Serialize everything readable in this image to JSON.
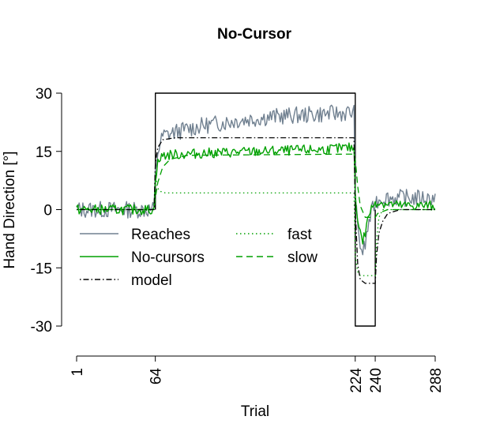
{
  "chart_data": {
    "type": "line",
    "title": "No-Cursor",
    "xlabel": "Trial",
    "ylabel": "Hand Direction [°]",
    "xlim": [
      1,
      288
    ],
    "ylim": [
      -30,
      30
    ],
    "x_ticks": [
      1,
      64,
      224,
      240,
      288
    ],
    "x_tick_labels": [
      "1",
      "64",
      "224",
      "240",
      "288"
    ],
    "y_ticks": [
      30,
      15,
      0,
      -15,
      -30
    ],
    "y_tick_labels": [
      "30",
      "15",
      "0",
      "-15",
      "-30"
    ],
    "grid": false,
    "legend": {
      "placement": "center-left",
      "entries": [
        {
          "label": "Reaches",
          "color": "#708090",
          "style": "solid"
        },
        {
          "label": "No-cursors",
          "color": "#00a000",
          "style": "solid"
        },
        {
          "label": "model",
          "color": "#000000",
          "style": "dotdash"
        },
        {
          "label": "fast",
          "color": "#00a000",
          "style": "dotted"
        },
        {
          "label": "slow",
          "color": "#00a000",
          "style": "dashed"
        }
      ]
    },
    "series": [
      {
        "name": "Reaches",
        "color": "#708090",
        "style": "solid",
        "noise": 2.0,
        "points": [
          [
            1,
            0
          ],
          [
            63,
            0
          ],
          [
            64,
            9
          ],
          [
            66,
            15
          ],
          [
            70,
            19
          ],
          [
            80,
            20
          ],
          [
            100,
            21.5
          ],
          [
            130,
            23
          ],
          [
            160,
            24
          ],
          [
            190,
            24.5
          ],
          [
            223,
            25
          ],
          [
            224,
            3
          ],
          [
            226,
            -5
          ],
          [
            228,
            -9
          ],
          [
            230,
            -11
          ],
          [
            232,
            -9
          ],
          [
            235,
            -3
          ],
          [
            240,
            2
          ],
          [
            245,
            3
          ],
          [
            260,
            3
          ],
          [
            288,
            3
          ]
        ]
      },
      {
        "name": "No-cursors",
        "color": "#00a000",
        "style": "solid",
        "noise": 1.2,
        "points": [
          [
            1,
            0
          ],
          [
            63,
            0
          ],
          [
            64,
            8
          ],
          [
            66,
            12
          ],
          [
            70,
            14
          ],
          [
            100,
            14.5
          ],
          [
            150,
            15
          ],
          [
            200,
            15.5
          ],
          [
            223,
            16
          ],
          [
            224,
            4
          ],
          [
            226,
            -2
          ],
          [
            228,
            -6
          ],
          [
            230,
            -8
          ],
          [
            232,
            -6
          ],
          [
            235,
            -1
          ],
          [
            240,
            2
          ],
          [
            260,
            1
          ],
          [
            288,
            1
          ]
        ]
      },
      {
        "name": "model",
        "color": "#000000",
        "style": "dotdash",
        "noise": 0,
        "points": [
          [
            1,
            0
          ],
          [
            63,
            0
          ],
          [
            64,
            12
          ],
          [
            66,
            16
          ],
          [
            70,
            18
          ],
          [
            80,
            18.5
          ],
          [
            223,
            18.5
          ],
          [
            224,
            0
          ],
          [
            226,
            -14
          ],
          [
            228,
            -18
          ],
          [
            232,
            -19
          ],
          [
            240,
            -19
          ],
          [
            241,
            -12
          ],
          [
            243,
            -6
          ],
          [
            246,
            -3
          ],
          [
            250,
            -1
          ],
          [
            260,
            0
          ],
          [
            288,
            0
          ]
        ]
      },
      {
        "name": "fast",
        "color": "#00a000",
        "style": "dotted",
        "noise": 0,
        "points": [
          [
            1,
            0
          ],
          [
            63,
            0
          ],
          [
            64,
            10
          ],
          [
            65,
            7
          ],
          [
            66,
            5.5
          ],
          [
            68,
            4.7
          ],
          [
            72,
            4.3
          ],
          [
            223,
            4.3
          ],
          [
            224,
            -12
          ],
          [
            226,
            -16
          ],
          [
            228,
            -17
          ],
          [
            232,
            -17
          ],
          [
            240,
            -17
          ],
          [
            241,
            -8
          ],
          [
            243,
            -2
          ],
          [
            246,
            0
          ],
          [
            288,
            0
          ]
        ]
      },
      {
        "name": "slow",
        "color": "#00a000",
        "style": "dashed",
        "noise": 0,
        "points": [
          [
            1,
            0
          ],
          [
            63,
            0
          ],
          [
            64,
            3
          ],
          [
            66,
            7
          ],
          [
            70,
            11
          ],
          [
            76,
            13
          ],
          [
            90,
            14
          ],
          [
            223,
            14.3
          ],
          [
            224,
            13
          ],
          [
            226,
            6
          ],
          [
            228,
            1
          ],
          [
            232,
            -2
          ],
          [
            240,
            -2
          ],
          [
            242,
            -1
          ],
          [
            250,
            0
          ],
          [
            288,
            0
          ]
        ]
      },
      {
        "name": "perturbation",
        "color": "#000000",
        "style": "solid",
        "noise": 0,
        "points": [
          [
            64,
            0
          ],
          [
            64,
            30
          ],
          [
            224,
            30
          ],
          [
            224,
            -30
          ],
          [
            240,
            -30
          ],
          [
            240,
            0
          ]
        ]
      }
    ]
  }
}
